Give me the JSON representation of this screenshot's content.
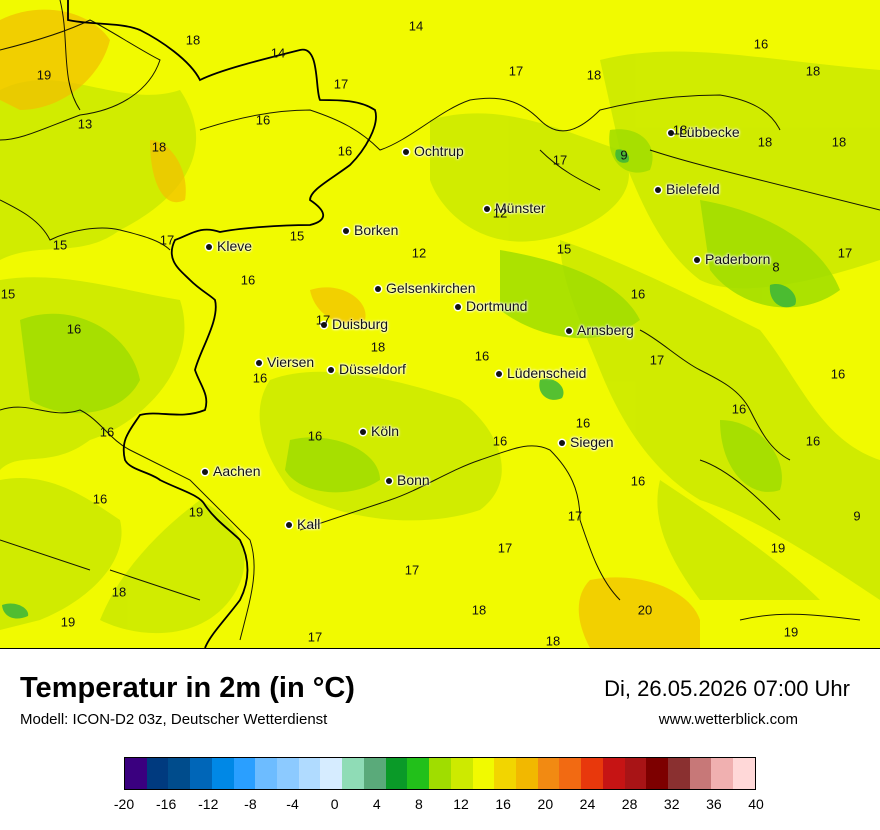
{
  "header": {
    "title": "Temperatur in 2m (in °C)",
    "model": "Modell: ICON-D2 03z, Deutscher Wetterdienst",
    "datetime": "Di, 26.05.2026 07:00 Uhr",
    "website": "www.wetterblick.com"
  },
  "colors": {
    "base": "#f1fa00",
    "light_green": "#cdea00",
    "green": "#a0dd00",
    "dark_green": "#3ab53a",
    "orange": "#f2c100",
    "border": "#000000"
  },
  "cities": [
    {
      "name": "Ochtrup"
    },
    {
      "name": "Lübbecke"
    },
    {
      "name": "Bielefeld"
    },
    {
      "name": "Münster"
    },
    {
      "name": "Borken"
    },
    {
      "name": "Kleve"
    },
    {
      "name": "Paderborn"
    },
    {
      "name": "Gelsenkirchen"
    },
    {
      "name": "Dortmund"
    },
    {
      "name": "Duisburg"
    },
    {
      "name": "Arnsberg"
    },
    {
      "name": "Viersen"
    },
    {
      "name": "Düsseldorf"
    },
    {
      "name": "Lüdenscheid"
    },
    {
      "name": "Köln"
    },
    {
      "name": "Siegen"
    },
    {
      "name": "Aachen"
    },
    {
      "name": "Bonn"
    },
    {
      "name": "Kall"
    }
  ],
  "values": [
    "14",
    "14",
    "18",
    "19",
    "13",
    "16",
    "18",
    "17",
    "16",
    "17",
    "18",
    "16",
    "18",
    "18",
    "9",
    "18",
    "17",
    "18",
    "12",
    "15",
    "17",
    "15",
    "12",
    "15",
    "16",
    "16",
    "17",
    "8",
    "15",
    "16",
    "18",
    "16",
    "17",
    "16",
    "16",
    "16",
    "16",
    "16",
    "16",
    "16",
    "16",
    "16",
    "19",
    "17",
    "17",
    "9",
    "16",
    "19",
    "18",
    "17",
    "17",
    "18",
    "20",
    "18",
    "17",
    "19",
    "19"
  ],
  "legend": {
    "colors": [
      "#3a007f",
      "#003a7f",
      "#004c8c",
      "#0066b8",
      "#0088e6",
      "#2a9fff",
      "#6dbcff",
      "#8ccaff",
      "#b0dbff",
      "#d6ecff",
      "#8fdcb6",
      "#5aaa7a",
      "#0a9a28",
      "#22c01a",
      "#a0dd00",
      "#cdea00",
      "#f1fa00",
      "#f2d500",
      "#f2b800",
      "#f28a12",
      "#f26a12",
      "#e8380c",
      "#c61414",
      "#a81416",
      "#7d0000",
      "#8a3030",
      "#c77878",
      "#f0b0b0",
      "#ffd8d8"
    ],
    "ticks": [
      "-20",
      "-16",
      "-12",
      "-8",
      "-4",
      "0",
      "4",
      "8",
      "12",
      "16",
      "20",
      "24",
      "28",
      "32",
      "36",
      "40"
    ]
  }
}
